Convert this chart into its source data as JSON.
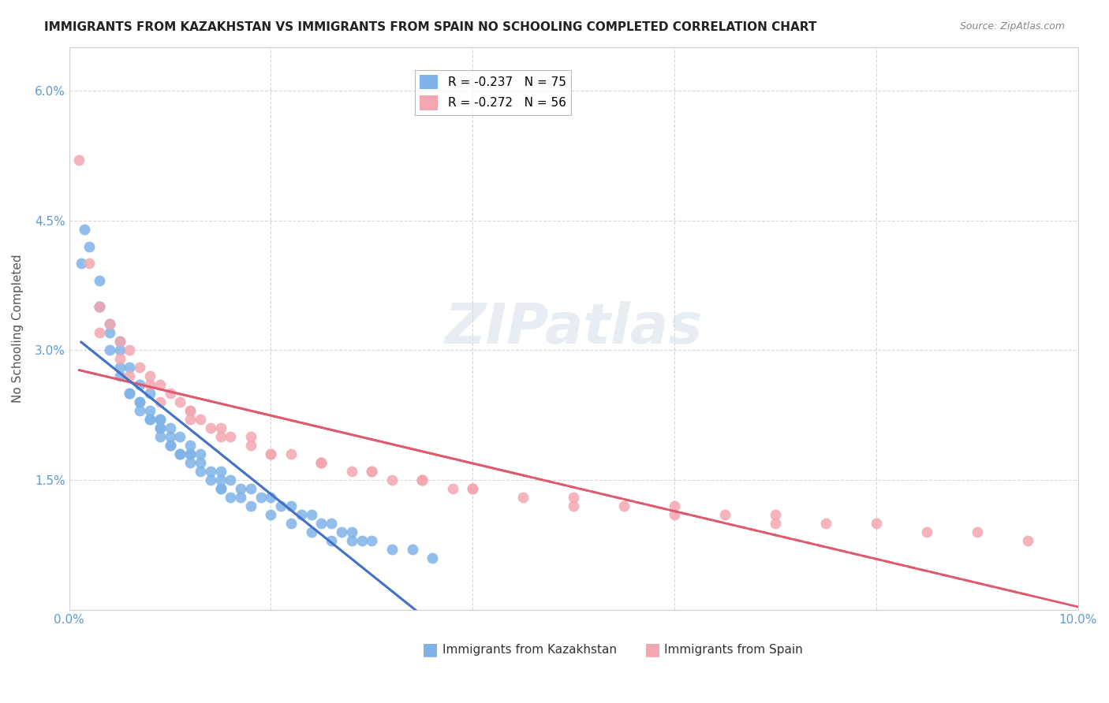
{
  "title": "IMMIGRANTS FROM KAZAKHSTAN VS IMMIGRANTS FROM SPAIN NO SCHOOLING COMPLETED CORRELATION CHART",
  "source": "Source: ZipAtlas.com",
  "xlabel": "",
  "ylabel": "No Schooling Completed",
  "xlim": [
    0.0,
    0.1
  ],
  "ylim": [
    0.0,
    0.065
  ],
  "xticks": [
    0.0,
    0.02,
    0.04,
    0.06,
    0.08,
    0.1
  ],
  "xtick_labels": [
    "0.0%",
    "",
    "",
    "",
    "",
    "10.0%"
  ],
  "yticks": [
    0.0,
    0.015,
    0.03,
    0.045,
    0.06
  ],
  "ytick_labels": [
    "",
    "1.5%",
    "3.0%",
    "4.5%",
    "6.0%"
  ],
  "legend1_label": "R = -0.237   N = 75",
  "legend2_label": "R = -0.272   N = 56",
  "series1_color": "#7fb3e8",
  "series2_color": "#f4a7b0",
  "trendline1_color": "#4472c4",
  "trendline2_color": "#e05a6e",
  "watermark": "ZIPatlas",
  "background_color": "#ffffff",
  "grid_color": "#c8c8c8",
  "title_fontsize": 11,
  "axis_label_fontsize": 11,
  "tick_label_color": "#5b9bd5",
  "kazakhstan_x": [
    0.0012,
    0.0015,
    0.002,
    0.003,
    0.003,
    0.004,
    0.004,
    0.005,
    0.005,
    0.005,
    0.006,
    0.006,
    0.007,
    0.007,
    0.008,
    0.008,
    0.008,
    0.009,
    0.009,
    0.009,
    0.01,
    0.01,
    0.01,
    0.011,
    0.011,
    0.012,
    0.012,
    0.013,
    0.013,
    0.014,
    0.015,
    0.015,
    0.016,
    0.017,
    0.018,
    0.019,
    0.02,
    0.021,
    0.022,
    0.023,
    0.024,
    0.025,
    0.026,
    0.027,
    0.028,
    0.029,
    0.03,
    0.032,
    0.034,
    0.036,
    0.003,
    0.004,
    0.006,
    0.007,
    0.008,
    0.009,
    0.01,
    0.011,
    0.012,
    0.013,
    0.014,
    0.015,
    0.016,
    0.017,
    0.018,
    0.02,
    0.022,
    0.024,
    0.026,
    0.028,
    0.005,
    0.007,
    0.009,
    0.012,
    0.015
  ],
  "kazakhstan_y": [
    0.04,
    0.044,
    0.042,
    0.038,
    0.035,
    0.032,
    0.033,
    0.03,
    0.028,
    0.031,
    0.028,
    0.025,
    0.026,
    0.024,
    0.025,
    0.022,
    0.023,
    0.022,
    0.02,
    0.021,
    0.02,
    0.019,
    0.021,
    0.018,
    0.02,
    0.018,
    0.019,
    0.017,
    0.018,
    0.016,
    0.016,
    0.015,
    0.015,
    0.014,
    0.014,
    0.013,
    0.013,
    0.012,
    0.012,
    0.011,
    0.011,
    0.01,
    0.01,
    0.009,
    0.009,
    0.008,
    0.008,
    0.007,
    0.007,
    0.006,
    0.035,
    0.03,
    0.025,
    0.023,
    0.022,
    0.021,
    0.019,
    0.018,
    0.017,
    0.016,
    0.015,
    0.014,
    0.013,
    0.013,
    0.012,
    0.011,
    0.01,
    0.009,
    0.008,
    0.008,
    0.027,
    0.024,
    0.022,
    0.018,
    0.014
  ],
  "spain_x": [
    0.001,
    0.002,
    0.003,
    0.004,
    0.005,
    0.006,
    0.007,
    0.008,
    0.009,
    0.01,
    0.011,
    0.012,
    0.013,
    0.014,
    0.015,
    0.016,
    0.018,
    0.02,
    0.022,
    0.025,
    0.028,
    0.03,
    0.032,
    0.035,
    0.038,
    0.04,
    0.045,
    0.05,
    0.055,
    0.06,
    0.065,
    0.07,
    0.075,
    0.08,
    0.085,
    0.09,
    0.095,
    0.003,
    0.006,
    0.009,
    0.012,
    0.015,
    0.02,
    0.025,
    0.03,
    0.035,
    0.04,
    0.05,
    0.06,
    0.07,
    0.005,
    0.008,
    0.012,
    0.018,
    0.025,
    0.035
  ],
  "spain_y": [
    0.052,
    0.04,
    0.035,
    0.033,
    0.031,
    0.03,
    0.028,
    0.027,
    0.026,
    0.025,
    0.024,
    0.023,
    0.022,
    0.021,
    0.021,
    0.02,
    0.019,
    0.018,
    0.018,
    0.017,
    0.016,
    0.016,
    0.015,
    0.015,
    0.014,
    0.014,
    0.013,
    0.013,
    0.012,
    0.012,
    0.011,
    0.011,
    0.01,
    0.01,
    0.009,
    0.009,
    0.008,
    0.032,
    0.027,
    0.024,
    0.022,
    0.02,
    0.018,
    0.017,
    0.016,
    0.015,
    0.014,
    0.012,
    0.011,
    0.01,
    0.029,
    0.026,
    0.023,
    0.02,
    0.017,
    0.015
  ]
}
